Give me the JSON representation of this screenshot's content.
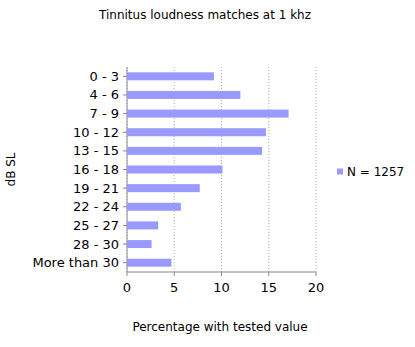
{
  "chart_data": {
    "type": "bar",
    "orientation": "horizontal",
    "title": "Tinnitus loudness matches at 1 khz",
    "x_label": "Percentage with tested value",
    "y_label": "dB SL",
    "categories": [
      "0 - 3",
      "4 - 6",
      "7 - 9",
      "10 - 12",
      "13 - 15",
      "16 - 18",
      "19 - 21",
      "22 - 24",
      "25 - 27",
      "28 - 30",
      "More than 30"
    ],
    "series": [
      {
        "name": "N = 1257",
        "color": "#9999ff",
        "values": [
          9.2,
          12.0,
          17.1,
          14.7,
          14.3,
          10.1,
          7.7,
          5.7,
          3.3,
          2.6,
          4.7
        ]
      }
    ],
    "xlim": [
      0,
      20
    ],
    "xticks": [
      0,
      5,
      10,
      15,
      20
    ],
    "grid": true,
    "legend": "right"
  }
}
